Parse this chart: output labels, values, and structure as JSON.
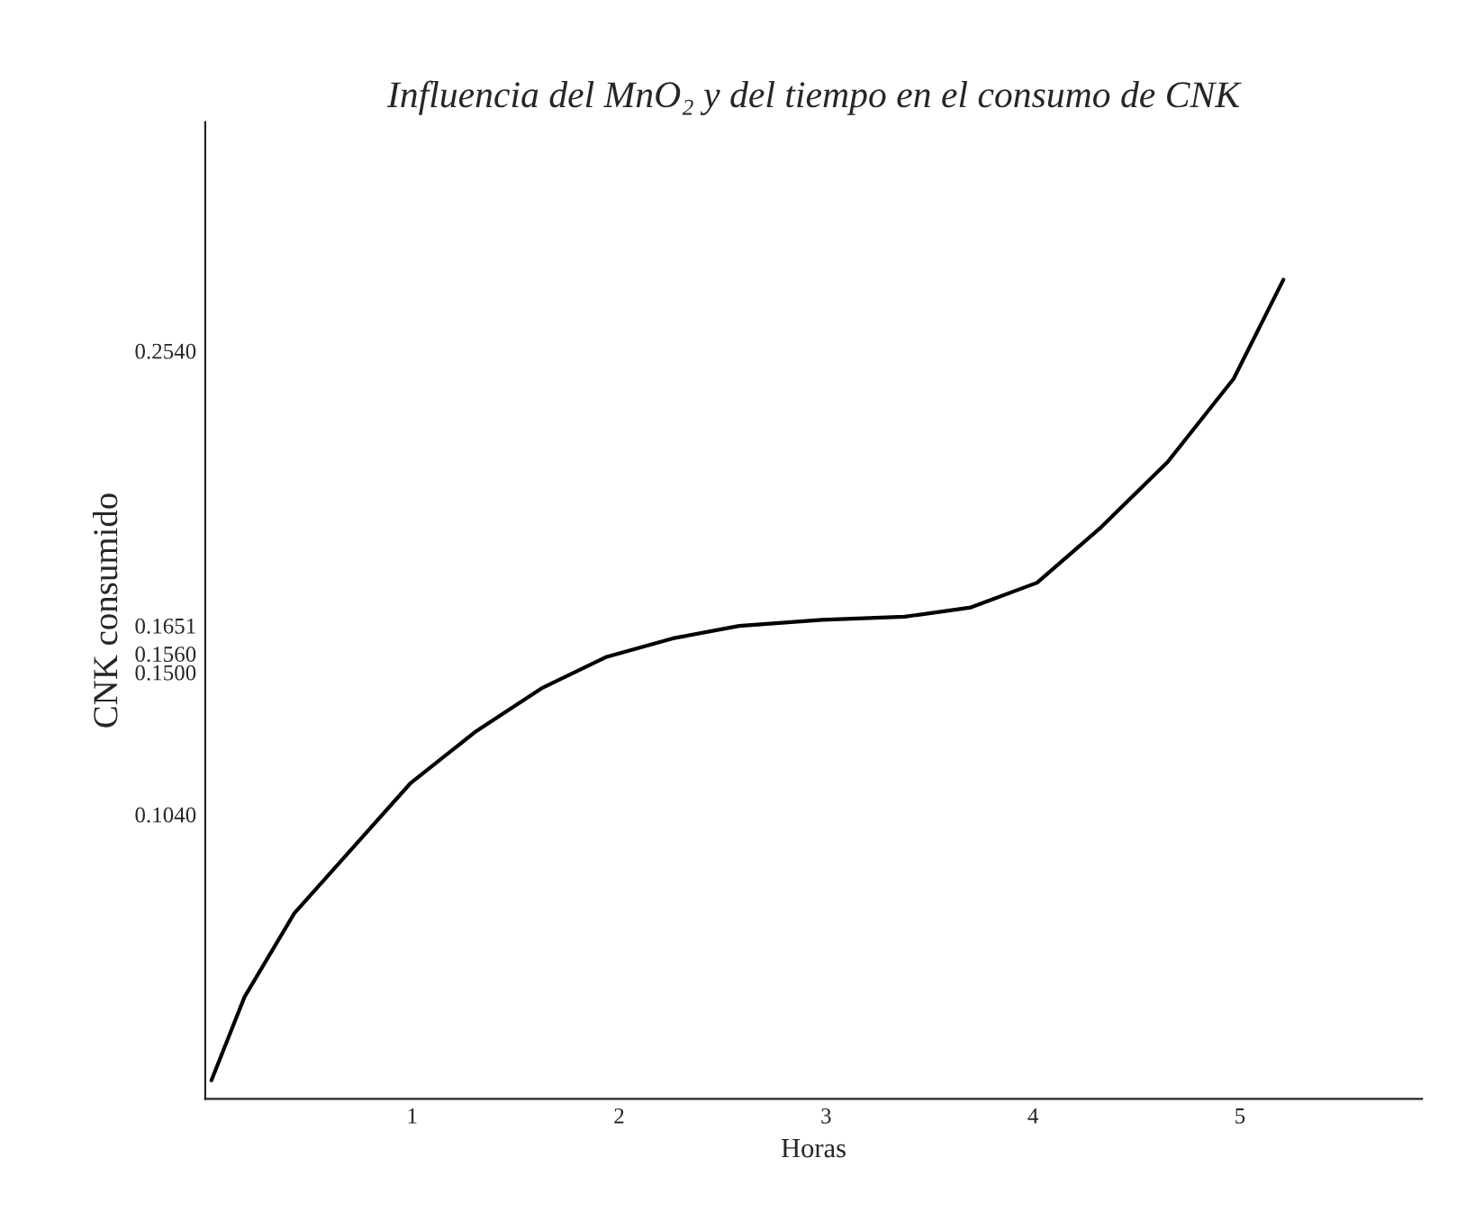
{
  "chart_data": {
    "type": "line",
    "title": "Influencia del MnO₂ y del tiempo en el consumo de CNK",
    "xlabel": "Horas",
    "ylabel": "CNK consumido",
    "x": [
      0.03,
      0.19,
      0.43,
      0.67,
      0.99,
      1.31,
      1.63,
      1.94,
      2.26,
      2.58,
      2.98,
      3.38,
      3.7,
      4.02,
      4.33,
      4.65,
      4.97,
      5.21
    ],
    "series": [
      {
        "color": "#000000",
        "values": [
          0.018,
          0.045,
          0.072,
          0.09,
          0.114,
          0.131,
          0.145,
          0.155,
          0.161,
          0.165,
          0.167,
          0.168,
          0.171,
          0.179,
          0.197,
          0.218,
          0.245,
          0.277
        ]
      }
    ],
    "xlim": [
      0,
      5.88
    ],
    "ylim": [
      0.012,
      0.328
    ],
    "xticks": [
      1,
      2,
      3,
      4,
      5
    ],
    "yticks": [
      {
        "value": 0.104,
        "label": "0.1040"
      },
      {
        "value": 0.15,
        "label": "0.1500"
      },
      {
        "value": 0.156,
        "label": "0.1560"
      },
      {
        "value": 0.1651,
        "label": "0.1651"
      },
      {
        "value": 0.254,
        "label": "0.2540"
      }
    ],
    "grid": false,
    "legend": false,
    "marker": "none",
    "line_style": "solid"
  }
}
